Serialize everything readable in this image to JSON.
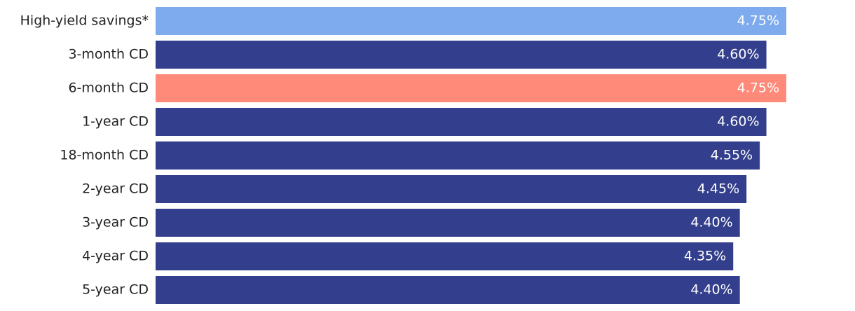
{
  "chart_data": {
    "type": "hbar",
    "categories": [
      "High-yield savings*",
      "3-month CD",
      "6-month CD",
      "1-year CD",
      "18-month CD",
      "2-year CD",
      "3-year CD",
      "4-year CD",
      "5-year CD"
    ],
    "values": [
      4.75,
      4.6,
      4.75,
      4.6,
      4.55,
      4.45,
      4.4,
      4.35,
      4.4
    ],
    "value_labels": [
      "4.75%",
      "4.60%",
      "4.75%",
      "4.60%",
      "4.55%",
      "4.45%",
      "4.40%",
      "4.35%",
      "4.40%"
    ],
    "colors": [
      "#7eaaee",
      "#333f8c",
      "#ff8a7a",
      "#333f8c",
      "#333f8c",
      "#333f8c",
      "#333f8c",
      "#333f8c",
      "#333f8c"
    ]
  }
}
